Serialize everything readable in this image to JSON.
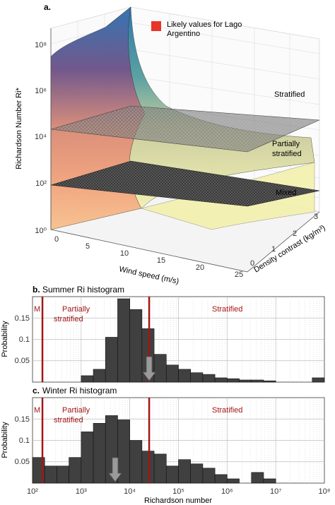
{
  "panels": {
    "a_label": "a.",
    "b_label": "b.",
    "b_title": "Summer Ri histogram",
    "c_label": "c.",
    "c_title": "Winter Ri histogram"
  },
  "colors": {
    "likely_region": "#e8342a",
    "regime_line": "#a31515",
    "bar_fill": "#404040",
    "arrow_fill": "#9a9a9a",
    "plane": "#555555",
    "surface_high": "#2a6fae",
    "surface_mid": "#e88a68",
    "surface_low": "#f2eeaa"
  },
  "chart_data": [
    {
      "panel": "a",
      "type": "surface",
      "zlabel": "Richardson Number Ri*",
      "xlabel": "Wind speed (m/s)",
      "ylabel": "Density contrast (kg/m³)",
      "x_ticks": [
        "0",
        "5",
        "10",
        "15",
        "20",
        "25"
      ],
      "y_ticks": [
        "0",
        "1",
        "2",
        "3"
      ],
      "z_ticks": [
        "10⁰",
        "10²",
        "10⁴",
        "10⁶",
        "10⁸"
      ],
      "zscale": "log",
      "zlim": [
        1,
        100000000
      ],
      "planes": [
        {
          "z": 25000,
          "upper_label": "Stratified",
          "lower_label": "Partially stratified"
        },
        {
          "z": 160,
          "upper_label": "Partially stratified",
          "lower_label": "Mixed"
        }
      ],
      "regions": [
        "Stratified",
        "Partially stratified",
        "Mixed"
      ],
      "legend": [
        {
          "label": "Likely values for Lago Argentino",
          "color": "#e8342a"
        }
      ]
    },
    {
      "panel": "b",
      "type": "bar",
      "title": "Summer Ri histogram",
      "ylabel": "Probability",
      "xscale": "log",
      "xlim": [
        100,
        100000000
      ],
      "ylim": [
        0,
        0.2
      ],
      "y_ticks": [
        "0.05",
        "0.1",
        "0.15"
      ],
      "bin_edges_log10": [
        2.0,
        2.25,
        2.5,
        2.75,
        3.0,
        3.25,
        3.5,
        3.75,
        4.0,
        4.25,
        4.5,
        4.75,
        5.0,
        5.25,
        5.5,
        5.75,
        6.0,
        6.25,
        6.5,
        6.75,
        7.0,
        7.25,
        7.5,
        7.75,
        8.0
      ],
      "values": [
        0,
        0,
        0,
        0,
        0.015,
        0.03,
        0.105,
        0.195,
        0.17,
        0.125,
        0.065,
        0.04,
        0.03,
        0.022,
        0.018,
        0.01,
        0.008,
        0.005,
        0.005,
        0.003,
        0,
        0,
        0,
        0.01
      ],
      "regime_lines": [
        160,
        25000
      ],
      "regime_labels": [
        "M",
        "Partially stratified",
        "Stratified"
      ],
      "arrow_x": 25000
    },
    {
      "panel": "c",
      "type": "bar",
      "title": "Winter Ri histogram",
      "ylabel": "Probability",
      "xlabel": "Richardson number",
      "xscale": "log",
      "xlim": [
        100,
        100000000
      ],
      "ylim": [
        0,
        0.2
      ],
      "x_ticks": [
        "10²",
        "10³",
        "10⁴",
        "10⁵",
        "10⁶",
        "10⁷",
        "10⁸"
      ],
      "y_ticks": [
        "0.05",
        "0.1",
        "0.15"
      ],
      "bin_edges_log10": [
        2.0,
        2.25,
        2.5,
        2.75,
        3.0,
        3.25,
        3.5,
        3.75,
        4.0,
        4.25,
        4.5,
        4.75,
        5.0,
        5.25,
        5.5,
        5.75,
        6.0,
        6.25,
        6.5,
        6.75,
        7.0,
        7.25,
        7.5,
        7.75,
        8.0
      ],
      "values": [
        0.06,
        0.04,
        0.04,
        0.06,
        0.12,
        0.14,
        0.158,
        0.148,
        0.1,
        0.075,
        0.068,
        0.04,
        0.055,
        0.045,
        0.035,
        0.02,
        0.01,
        0,
        0.025,
        0.01,
        0,
        0,
        0,
        0
      ],
      "regime_lines": [
        160,
        25000
      ],
      "regime_labels": [
        "M",
        "Partially stratified",
        "Stratified"
      ],
      "arrow_x": 5000
    }
  ]
}
